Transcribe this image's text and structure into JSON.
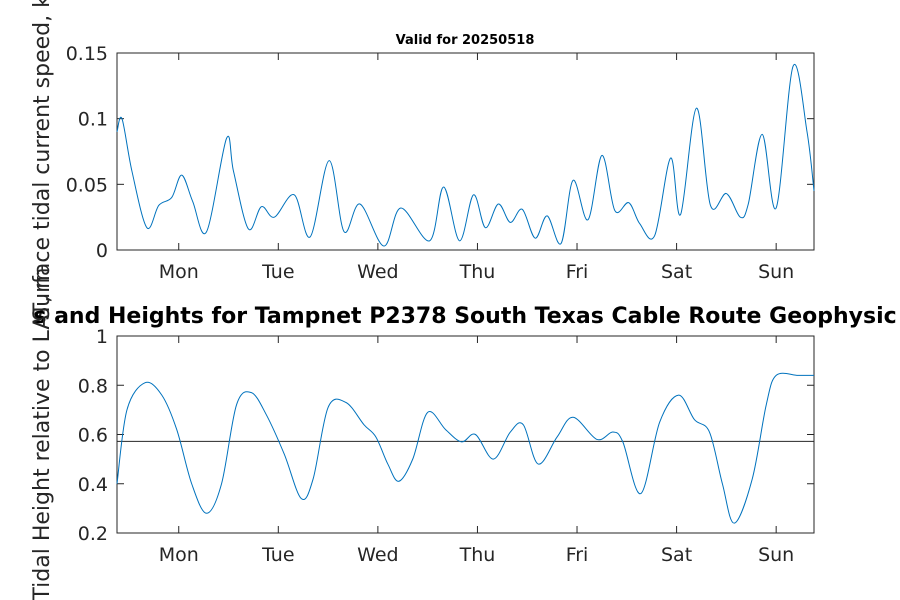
{
  "chart_data": [
    {
      "type": "line",
      "title": "Valid for 20250518",
      "ylabel": "Surface tidal current speed, kn",
      "ylim": [
        0,
        0.15
      ],
      "yticks": [
        0,
        0.05,
        0.1,
        0.15
      ],
      "ytick_labels": [
        "0",
        "0.05",
        "0.1",
        "0.15"
      ],
      "xlim": [
        0,
        7
      ],
      "xticks": [
        0.62,
        1.62,
        2.62,
        3.62,
        4.62,
        5.62,
        6.62
      ],
      "xtick_labels": [
        "Mon",
        "Tue",
        "Wed",
        "Thu",
        "Fri",
        "Sat",
        "Sun"
      ],
      "series": [
        {
          "x": [
            0,
            0.05,
            0.15,
            0.3,
            0.42,
            0.55,
            0.65,
            0.76,
            0.9,
            1.1,
            1.17,
            1.32,
            1.45,
            1.58,
            1.78,
            1.94,
            2.13,
            2.28,
            2.44,
            2.68,
            2.85,
            3.14,
            3.28,
            3.44,
            3.58,
            3.7,
            3.83,
            3.95,
            4.07,
            4.2,
            4.32,
            4.46,
            4.58,
            4.73,
            4.87,
            5.0,
            5.14,
            5.25,
            5.4,
            5.56,
            5.66,
            5.82,
            5.96,
            6.12,
            6.26,
            6.34,
            6.48,
            6.62,
            6.79,
            6.93,
            7.0
          ],
          "values": [
            0.09,
            0.1,
            0.06,
            0.017,
            0.034,
            0.04,
            0.057,
            0.037,
            0.014,
            0.085,
            0.06,
            0.016,
            0.033,
            0.025,
            0.042,
            0.01,
            0.068,
            0.014,
            0.035,
            0.003,
            0.032,
            0.007,
            0.048,
            0.007,
            0.042,
            0.017,
            0.035,
            0.021,
            0.031,
            0.009,
            0.026,
            0.005,
            0.053,
            0.023,
            0.072,
            0.03,
            0.036,
            0.02,
            0.011,
            0.07,
            0.027,
            0.108,
            0.034,
            0.043,
            0.025,
            0.035,
            0.088,
            0.032,
            0.14,
            0.09,
            0.045
          ]
        }
      ]
    },
    {
      "type": "line",
      "title": "s and Heights for Tampnet P2378 South Texas Cable Route Geophysic",
      "ylabel": "Tidal Height relative to LAT, m",
      "ylim": [
        0.2,
        1.0
      ],
      "yticks": [
        0.2,
        0.4,
        0.6,
        0.8,
        1.0
      ],
      "ytick_labels": [
        "0.2",
        "0.4",
        "0.6",
        "0.8",
        "1"
      ],
      "xlim": [
        0,
        7
      ],
      "xticks": [
        0.62,
        1.62,
        2.62,
        3.62,
        4.62,
        5.62,
        6.62
      ],
      "xtick_labels": [
        "Mon",
        "Tue",
        "Wed",
        "Thu",
        "Fri",
        "Sat",
        "Sun"
      ],
      "reference_line": 0.572,
      "series": [
        {
          "x": [
            0,
            0.1,
            0.28,
            0.45,
            0.6,
            0.75,
            0.9,
            1.05,
            1.2,
            1.35,
            1.5,
            1.68,
            1.85,
            1.97,
            2.12,
            2.3,
            2.48,
            2.6,
            2.72,
            2.83,
            2.97,
            3.12,
            3.3,
            3.46,
            3.6,
            3.78,
            3.95,
            4.08,
            4.23,
            4.42,
            4.58,
            4.82,
            4.98,
            5.08,
            5.26,
            5.45,
            5.64,
            5.8,
            5.95,
            6.08,
            6.2,
            6.38,
            6.52,
            6.62,
            6.84,
            7.0
          ],
          "values": [
            0.4,
            0.7,
            0.81,
            0.76,
            0.62,
            0.4,
            0.28,
            0.4,
            0.72,
            0.77,
            0.68,
            0.52,
            0.34,
            0.42,
            0.71,
            0.73,
            0.64,
            0.59,
            0.48,
            0.41,
            0.5,
            0.69,
            0.62,
            0.57,
            0.6,
            0.5,
            0.61,
            0.64,
            0.48,
            0.59,
            0.67,
            0.58,
            0.61,
            0.57,
            0.36,
            0.65,
            0.76,
            0.66,
            0.61,
            0.4,
            0.24,
            0.42,
            0.72,
            0.84,
            0.84,
            0.84
          ]
        }
      ]
    }
  ]
}
